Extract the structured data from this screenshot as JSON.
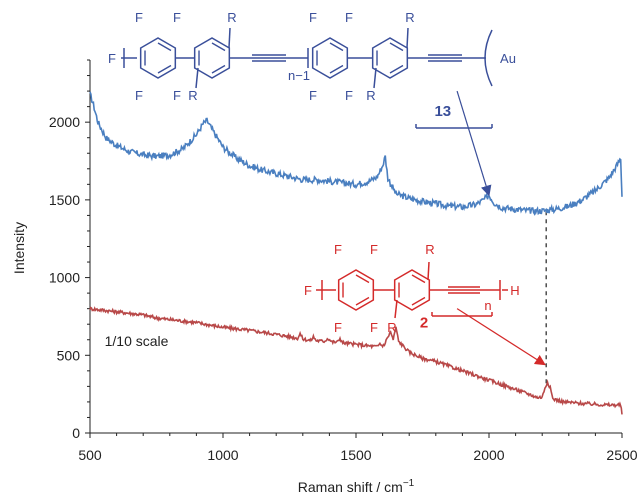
{
  "chart_data": {
    "type": "line",
    "title": "",
    "xlabel": "Raman shift / cm",
    "xlabel_superscript": "−1",
    "ylabel": "Intensity",
    "xlim": [
      500,
      2500
    ],
    "ylim": [
      0,
      2400
    ],
    "xticks": [
      500,
      1000,
      1500,
      2000,
      2500
    ],
    "yticks": [
      0,
      500,
      1000,
      1500,
      2000
    ],
    "grid": false,
    "legend": "none",
    "series": [
      {
        "color": "#4a7fc0",
        "compound_label": "13",
        "points": [
          [
            500,
            2180
          ],
          [
            510,
            2130
          ],
          [
            530,
            2000
          ],
          [
            560,
            1900
          ],
          [
            600,
            1850
          ],
          [
            650,
            1810
          ],
          [
            700,
            1790
          ],
          [
            750,
            1780
          ],
          [
            800,
            1790
          ],
          [
            850,
            1830
          ],
          [
            900,
            1920
          ],
          [
            925,
            1990
          ],
          [
            940,
            2010
          ],
          [
            960,
            1950
          ],
          [
            1000,
            1840
          ],
          [
            1050,
            1770
          ],
          [
            1100,
            1720
          ],
          [
            1150,
            1690
          ],
          [
            1200,
            1670
          ],
          [
            1250,
            1650
          ],
          [
            1300,
            1630
          ],
          [
            1350,
            1630
          ],
          [
            1400,
            1620
          ],
          [
            1450,
            1610
          ],
          [
            1500,
            1600
          ],
          [
            1550,
            1620
          ],
          [
            1580,
            1650
          ],
          [
            1600,
            1720
          ],
          [
            1610,
            1780
          ],
          [
            1620,
            1640
          ],
          [
            1650,
            1540
          ],
          [
            1700,
            1510
          ],
          [
            1750,
            1490
          ],
          [
            1800,
            1475
          ],
          [
            1850,
            1460
          ],
          [
            1900,
            1455
          ],
          [
            1950,
            1470
          ],
          [
            1980,
            1500
          ],
          [
            2000,
            1530
          ],
          [
            2020,
            1480
          ],
          [
            2050,
            1450
          ],
          [
            2100,
            1440
          ],
          [
            2150,
            1430
          ],
          [
            2200,
            1430
          ],
          [
            2250,
            1440
          ],
          [
            2300,
            1460
          ],
          [
            2350,
            1500
          ],
          [
            2400,
            1560
          ],
          [
            2450,
            1640
          ],
          [
            2480,
            1720
          ],
          [
            2495,
            1770
          ],
          [
            2500,
            1520
          ]
        ]
      },
      {
        "color": "#b84848",
        "compound_label": "2",
        "points": [
          [
            500,
            800
          ],
          [
            550,
            790
          ],
          [
            600,
            780
          ],
          [
            650,
            770
          ],
          [
            700,
            760
          ],
          [
            750,
            740
          ],
          [
            800,
            730
          ],
          [
            850,
            720
          ],
          [
            900,
            710
          ],
          [
            950,
            695
          ],
          [
            1000,
            680
          ],
          [
            1050,
            670
          ],
          [
            1100,
            660
          ],
          [
            1150,
            648
          ],
          [
            1200,
            635
          ],
          [
            1250,
            620
          ],
          [
            1280,
            610
          ],
          [
            1290,
            640
          ],
          [
            1300,
            605
          ],
          [
            1330,
            595
          ],
          [
            1340,
            620
          ],
          [
            1350,
            595
          ],
          [
            1380,
            590
          ],
          [
            1395,
            610
          ],
          [
            1410,
            585
          ],
          [
            1430,
            585
          ],
          [
            1440,
            610
          ],
          [
            1450,
            580
          ],
          [
            1500,
            570
          ],
          [
            1550,
            560
          ],
          [
            1580,
            555
          ],
          [
            1590,
            575
          ],
          [
            1600,
            560
          ],
          [
            1610,
            580
          ],
          [
            1620,
            620
          ],
          [
            1630,
            650
          ],
          [
            1640,
            600
          ],
          [
            1645,
            640
          ],
          [
            1650,
            680
          ],
          [
            1660,
            590
          ],
          [
            1700,
            520
          ],
          [
            1750,
            480
          ],
          [
            1800,
            460
          ],
          [
            1850,
            430
          ],
          [
            1900,
            400
          ],
          [
            1950,
            370
          ],
          [
            2000,
            340
          ],
          [
            2050,
            310
          ],
          [
            2100,
            280
          ],
          [
            2150,
            250
          ],
          [
            2180,
            230
          ],
          [
            2200,
            230
          ],
          [
            2210,
            290
          ],
          [
            2220,
            330
          ],
          [
            2230,
            290
          ],
          [
            2240,
            220
          ],
          [
            2280,
            200
          ],
          [
            2350,
            190
          ],
          [
            2400,
            185
          ],
          [
            2450,
            180
          ],
          [
            2495,
            180
          ],
          [
            2500,
            120
          ]
        ]
      }
    ],
    "annotations": [
      {
        "text": "1/10 scale",
        "x": 555,
        "y": 560,
        "color": "#111111"
      },
      {
        "text": "13",
        "x": 1795,
        "y": 2040,
        "color": "#3a4f9a"
      },
      {
        "text": "2",
        "x": 1740,
        "y": 680,
        "color": "#d42a2a"
      }
    ],
    "reference_line": {
      "x": 2215,
      "y_from": 320,
      "y_to": 1440,
      "style": "dashed",
      "color": "#333333"
    },
    "arrows": [
      {
        "from": [
          1880,
          2200
        ],
        "to": [
          2000,
          1530
        ],
        "color": "#3a4f9a"
      },
      {
        "from": [
          1880,
          800
        ],
        "to": [
          2210,
          440
        ],
        "color": "#d42a2a"
      }
    ],
    "structures": {
      "compound_13": {
        "color": "#3a4f9a",
        "atoms": {
          "fluorine": "F",
          "r_group": "R",
          "gold": "Au"
        },
        "repeat_subscript": "n−1"
      },
      "compound_2": {
        "color": "#d42a2a",
        "atoms": {
          "fluorine": "F",
          "r_group": "R",
          "hydrogen": "H"
        },
        "repeat_subscript": "n"
      }
    }
  }
}
